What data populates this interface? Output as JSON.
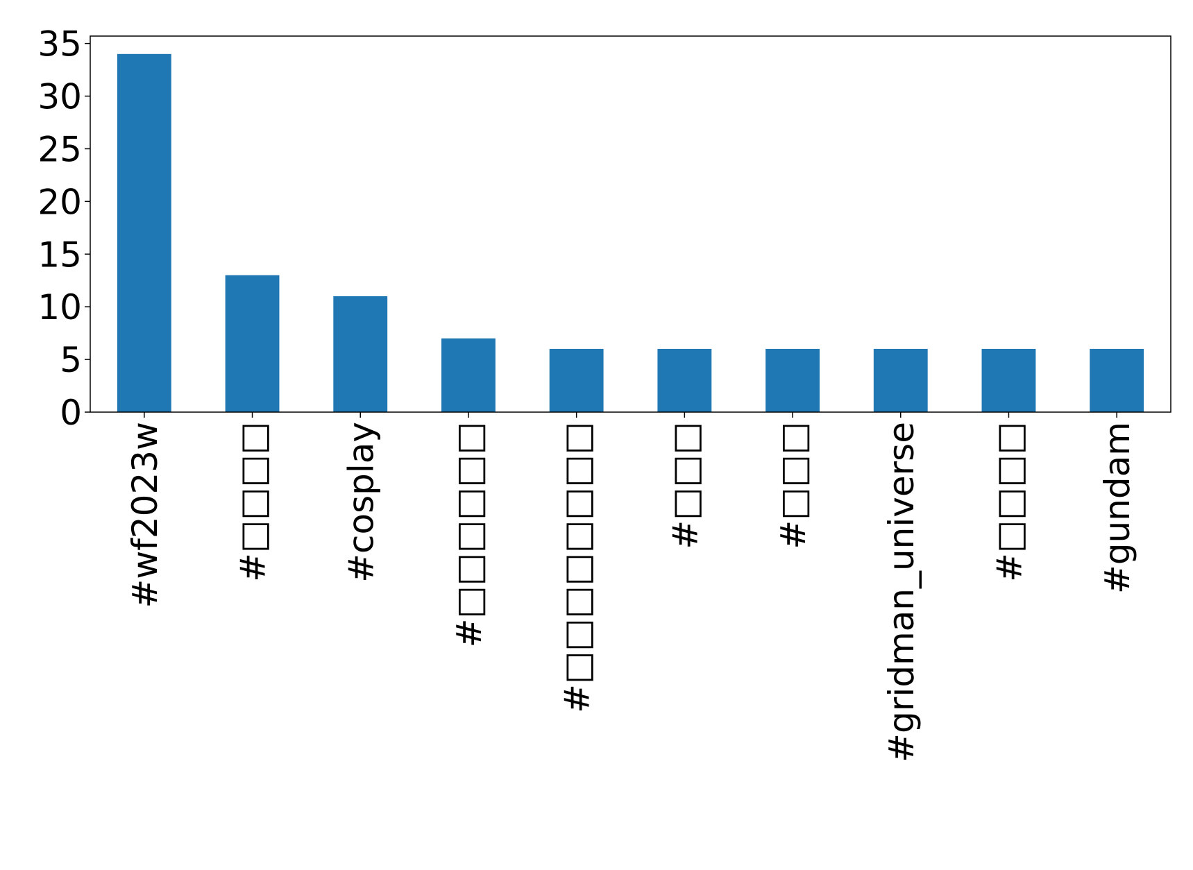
{
  "chart_data": {
    "type": "bar",
    "categories": [
      "#wf2023w",
      "#□□□□",
      "#cosplay",
      "#□□□□□□",
      "#□□□□□□□□",
      "#□□□",
      "#□□□",
      "#gridman_universe",
      "#□□□□",
      "#gundam"
    ],
    "values": [
      34,
      13,
      11,
      7,
      6,
      6,
      6,
      6,
      6,
      6
    ],
    "color": "#1f77b4",
    "ylim": [
      0,
      35.7
    ],
    "yticks": [
      0,
      5,
      10,
      15,
      20,
      25,
      30,
      35
    ],
    "grid": false
  }
}
